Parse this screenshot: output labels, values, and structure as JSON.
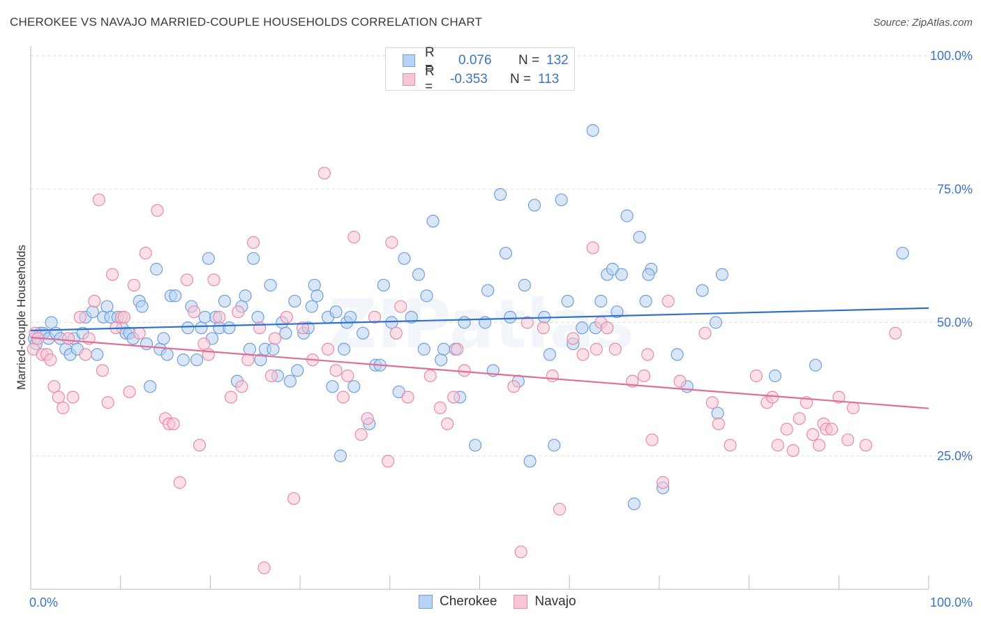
{
  "title": "CHEROKEE VS NAVAJO MARRIED-COUPLE HOUSEHOLDS CORRELATION CHART",
  "source": "Source: ZipAtlas.com",
  "watermark": "ZIPatlas",
  "colors": {
    "cherokee_fill": "#b8d2f3",
    "cherokee_stroke": "#6f9fdc",
    "cherokee_line": "#2f6fcd",
    "navajo_fill": "#f8c7d6",
    "navajo_stroke": "#e98aa8",
    "navajo_line": "#e06d98",
    "axis_text": "#3b73c6",
    "grid": "#dddddd"
  },
  "legend_top": {
    "rows": [
      {
        "r_label": "R =",
        "r_value": "0.076",
        "n_label": "N =",
        "n_value": "132",
        "series": "Cherokee"
      },
      {
        "r_label": "R =",
        "r_value": "-0.353",
        "n_label": "N =",
        "n_value": "113",
        "series": "Navajo"
      }
    ]
  },
  "legend_bottom": {
    "items": [
      "Cherokee",
      "Navajo"
    ]
  },
  "chart_data": {
    "type": "scatter",
    "title": "CHEROKEE VS NAVAJO MARRIED-COUPLE HOUSEHOLDS CORRELATION CHART",
    "xlabel": "",
    "ylabel": "Married-couple Households",
    "xlim": [
      0,
      100
    ],
    "ylim": [
      0,
      100
    ],
    "x_tick_labels": [
      "0.0%",
      "100.0%"
    ],
    "y_tick_labels": [
      "25.0%",
      "50.0%",
      "75.0%",
      "100.0%"
    ],
    "y_ticks": [
      25,
      50,
      75,
      100
    ],
    "series": [
      {
        "name": "Cherokee",
        "trend": {
          "x": [
            0,
            100
          ],
          "y": [
            48.5,
            52.7
          ]
        },
        "points": [
          [
            0.4,
            47
          ],
          [
            0.6,
            46
          ],
          [
            1.1,
            48
          ],
          [
            1.4,
            48
          ],
          [
            2.0,
            47
          ],
          [
            2.3,
            50
          ],
          [
            2.8,
            48
          ],
          [
            3.3,
            47
          ],
          [
            3.9,
            45
          ],
          [
            4.4,
            44
          ],
          [
            4.8,
            47
          ],
          [
            5.2,
            45
          ],
          [
            5.8,
            48
          ],
          [
            6.1,
            51
          ],
          [
            6.9,
            52
          ],
          [
            7.4,
            44
          ],
          [
            8.1,
            51
          ],
          [
            8.5,
            53
          ],
          [
            8.9,
            51
          ],
          [
            9.7,
            51
          ],
          [
            10.2,
            49
          ],
          [
            10.6,
            48
          ],
          [
            11.0,
            48
          ],
          [
            11.4,
            47
          ],
          [
            12.1,
            54
          ],
          [
            12.4,
            53
          ],
          [
            12.9,
            46
          ],
          [
            13.3,
            38
          ],
          [
            14.0,
            60
          ],
          [
            14.4,
            45
          ],
          [
            14.8,
            47
          ],
          [
            15.2,
            44
          ],
          [
            15.6,
            55
          ],
          [
            16.1,
            55
          ],
          [
            17.0,
            43
          ],
          [
            17.5,
            49
          ],
          [
            17.9,
            53
          ],
          [
            18.5,
            43
          ],
          [
            19.0,
            49
          ],
          [
            19.4,
            51
          ],
          [
            19.8,
            62
          ],
          [
            20.2,
            47
          ],
          [
            20.6,
            51
          ],
          [
            21.0,
            49
          ],
          [
            21.6,
            54
          ],
          [
            22.1,
            49
          ],
          [
            23.0,
            39
          ],
          [
            23.5,
            53
          ],
          [
            23.9,
            55
          ],
          [
            24.4,
            45
          ],
          [
            24.8,
            62
          ],
          [
            25.3,
            51
          ],
          [
            25.6,
            43
          ],
          [
            26.1,
            45
          ],
          [
            26.7,
            57
          ],
          [
            27.0,
            45
          ],
          [
            27.5,
            40
          ],
          [
            28.0,
            50
          ],
          [
            28.4,
            48
          ],
          [
            28.9,
            39
          ],
          [
            29.4,
            54
          ],
          [
            29.7,
            41
          ],
          [
            30.4,
            48
          ],
          [
            30.9,
            49
          ],
          [
            31.3,
            53
          ],
          [
            31.6,
            57
          ],
          [
            31.9,
            55
          ],
          [
            33.1,
            51
          ],
          [
            33.6,
            38
          ],
          [
            34.0,
            52
          ],
          [
            34.5,
            25
          ],
          [
            34.9,
            45
          ],
          [
            35.2,
            50
          ],
          [
            35.6,
            51
          ],
          [
            36.0,
            38
          ],
          [
            37.0,
            48
          ],
          [
            37.7,
            31
          ],
          [
            38.4,
            42
          ],
          [
            38.9,
            42
          ],
          [
            39.3,
            57
          ],
          [
            40.2,
            50
          ],
          [
            41.0,
            37
          ],
          [
            41.6,
            62
          ],
          [
            42.4,
            51
          ],
          [
            43.2,
            59
          ],
          [
            43.8,
            45
          ],
          [
            44.1,
            55
          ],
          [
            44.8,
            69
          ],
          [
            45.7,
            43
          ],
          [
            46.0,
            45
          ],
          [
            47.3,
            45
          ],
          [
            47.8,
            36
          ],
          [
            48.3,
            50
          ],
          [
            49.5,
            27
          ],
          [
            50.6,
            50
          ],
          [
            50.9,
            56
          ],
          [
            51.5,
            41
          ],
          [
            52.3,
            74
          ],
          [
            52.9,
            63
          ],
          [
            53.4,
            51
          ],
          [
            54.3,
            39
          ],
          [
            55.0,
            57
          ],
          [
            55.6,
            24
          ],
          [
            56.1,
            72
          ],
          [
            57.2,
            51
          ],
          [
            57.8,
            44
          ],
          [
            58.3,
            27
          ],
          [
            59.1,
            73
          ],
          [
            59.8,
            54
          ],
          [
            60.4,
            46
          ],
          [
            61.4,
            49
          ],
          [
            62.6,
            86
          ],
          [
            62.9,
            49
          ],
          [
            63.5,
            54
          ],
          [
            64.2,
            59
          ],
          [
            64.8,
            60
          ],
          [
            65.3,
            52
          ],
          [
            65.8,
            59
          ],
          [
            66.4,
            70
          ],
          [
            67.2,
            16
          ],
          [
            67.8,
            66
          ],
          [
            68.5,
            54
          ],
          [
            69.1,
            60
          ],
          [
            68.8,
            59
          ],
          [
            70.4,
            19
          ],
          [
            72.0,
            44
          ],
          [
            73.1,
            38
          ],
          [
            74.8,
            56
          ],
          [
            76.3,
            50
          ],
          [
            76.5,
            33
          ],
          [
            77.0,
            59
          ],
          [
            82.9,
            40
          ],
          [
            87.4,
            42
          ],
          [
            97.1,
            63
          ]
        ]
      },
      {
        "name": "Navajo",
        "trend": {
          "x": [
            0,
            100
          ],
          "y": [
            47.2,
            33.9
          ]
        },
        "points": [
          [
            0.3,
            45
          ],
          [
            0.5,
            48
          ],
          [
            0.8,
            47
          ],
          [
            1.3,
            44
          ],
          [
            1.8,
            44
          ],
          [
            2.2,
            43
          ],
          [
            2.6,
            38
          ],
          [
            3.1,
            36
          ],
          [
            3.6,
            34
          ],
          [
            4.2,
            47
          ],
          [
            4.7,
            36
          ],
          [
            5.5,
            51
          ],
          [
            6.1,
            44
          ],
          [
            6.5,
            47
          ],
          [
            7.1,
            54
          ],
          [
            7.6,
            73
          ],
          [
            8.0,
            41
          ],
          [
            8.6,
            35
          ],
          [
            9.1,
            59
          ],
          [
            9.5,
            49
          ],
          [
            10.1,
            51
          ],
          [
            10.4,
            51
          ],
          [
            11.0,
            37
          ],
          [
            11.5,
            57
          ],
          [
            12.1,
            48
          ],
          [
            12.8,
            63
          ],
          [
            14.1,
            71
          ],
          [
            15.0,
            32
          ],
          [
            15.4,
            31
          ],
          [
            15.9,
            31
          ],
          [
            16.6,
            20
          ],
          [
            17.4,
            58
          ],
          [
            18.2,
            52
          ],
          [
            18.8,
            27
          ],
          [
            19.3,
            46
          ],
          [
            19.8,
            44
          ],
          [
            20.4,
            58
          ],
          [
            21.0,
            51
          ],
          [
            22.3,
            36
          ],
          [
            23.1,
            52
          ],
          [
            23.5,
            38
          ],
          [
            24.2,
            43
          ],
          [
            24.8,
            65
          ],
          [
            25.5,
            49
          ],
          [
            26.0,
            4
          ],
          [
            26.8,
            40
          ],
          [
            27.2,
            47
          ],
          [
            28.5,
            51
          ],
          [
            29.3,
            17
          ],
          [
            30.3,
            49
          ],
          [
            31.4,
            43
          ],
          [
            32.7,
            78
          ],
          [
            33.1,
            45
          ],
          [
            34.0,
            41
          ],
          [
            34.8,
            36
          ],
          [
            35.3,
            40
          ],
          [
            36.0,
            66
          ],
          [
            36.8,
            29
          ],
          [
            37.5,
            32
          ],
          [
            38.3,
            51
          ],
          [
            39.8,
            24
          ],
          [
            40.2,
            65
          ],
          [
            40.7,
            48
          ],
          [
            41.2,
            53
          ],
          [
            42.0,
            36
          ],
          [
            44.5,
            40
          ],
          [
            45.6,
            34
          ],
          [
            46.4,
            31
          ],
          [
            47.1,
            36
          ],
          [
            47.5,
            45
          ],
          [
            48.3,
            41
          ],
          [
            53.8,
            38
          ],
          [
            54.6,
            7
          ],
          [
            55.3,
            50
          ],
          [
            57.1,
            49
          ],
          [
            58.1,
            40
          ],
          [
            58.9,
            15
          ],
          [
            60.4,
            47
          ],
          [
            61.5,
            44
          ],
          [
            62.6,
            64
          ],
          [
            63.0,
            45
          ],
          [
            63.5,
            50
          ],
          [
            64.2,
            49
          ],
          [
            65.1,
            45
          ],
          [
            67.0,
            39
          ],
          [
            68.3,
            40
          ],
          [
            68.7,
            44
          ],
          [
            69.2,
            28
          ],
          [
            70.4,
            20
          ],
          [
            71.0,
            54
          ],
          [
            72.3,
            39
          ],
          [
            75.1,
            48
          ],
          [
            75.9,
            35
          ],
          [
            76.6,
            31
          ],
          [
            77.9,
            27
          ],
          [
            80.8,
            40
          ],
          [
            82.0,
            35
          ],
          [
            82.6,
            36
          ],
          [
            83.2,
            27
          ],
          [
            84.2,
            30
          ],
          [
            84.9,
            26
          ],
          [
            85.6,
            32
          ],
          [
            86.4,
            35
          ],
          [
            87.1,
            29
          ],
          [
            87.8,
            27
          ],
          [
            88.3,
            31
          ],
          [
            88.6,
            30
          ],
          [
            89.2,
            30
          ],
          [
            90.0,
            36
          ],
          [
            91.0,
            28
          ],
          [
            91.6,
            34
          ],
          [
            93.0,
            27
          ],
          [
            96.3,
            48
          ]
        ]
      }
    ]
  }
}
